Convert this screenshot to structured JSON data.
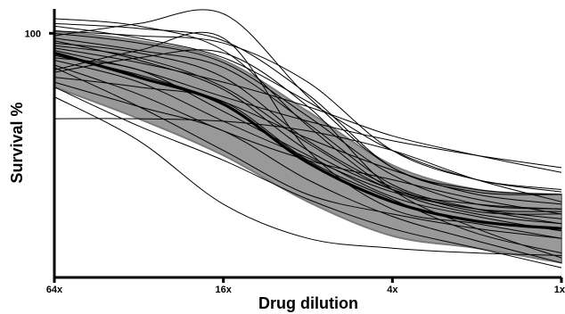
{
  "chart_data": {
    "type": "line",
    "title": "",
    "xlabel": "Drug dilution",
    "ylabel": "Survival %",
    "x_ticks": [
      "64x",
      "16x",
      "4x",
      "1x"
    ],
    "y_ticks": [
      "100"
    ],
    "xlim": [
      0,
      3
    ],
    "ylim": [
      0,
      110
    ],
    "grid": false,
    "legend": "none",
    "colors": {
      "individual": "#000000",
      "band_fill": "#999999",
      "band_edge": "#7a7a7a",
      "mean": "#000000"
    },
    "x": [
      0,
      0.5,
      1,
      1.5,
      2,
      2.5,
      3
    ],
    "band_upper": [
      101,
      97,
      89,
      68,
      46,
      36,
      34
    ],
    "band_lower": [
      78,
      65,
      50,
      31,
      17,
      12,
      6
    ],
    "mean_curve": {
      "values": [
        92,
        82,
        71,
        47,
        31,
        23,
        20
      ]
    },
    "series": [
      {
        "values": [
          106,
          103,
          93,
          62,
          36,
          26,
          22
        ]
      },
      {
        "values": [
          104,
          102,
          97,
          75,
          45,
          35,
          34
        ]
      },
      {
        "values": [
          103,
          98,
          90,
          72,
          52,
          40,
          35
        ]
      },
      {
        "values": [
          101,
          99,
          96,
          80,
          52,
          40,
          36
        ]
      },
      {
        "values": [
          100,
          96,
          88,
          66,
          42,
          30,
          28
        ]
      },
      {
        "values": [
          99,
          104,
          108,
          74,
          45,
          36,
          34
        ]
      },
      {
        "values": [
          98,
          93,
          86,
          63,
          38,
          28,
          22
        ]
      },
      {
        "values": [
          97,
          89,
          77,
          52,
          36,
          28,
          27
        ]
      },
      {
        "values": [
          96,
          92,
          82,
          56,
          37,
          27,
          26
        ]
      },
      {
        "values": [
          95,
          90,
          78,
          55,
          36,
          30,
          28
        ]
      },
      {
        "values": [
          94,
          88,
          80,
          70,
          58,
          50,
          43
        ]
      },
      {
        "values": [
          93,
          85,
          74,
          64,
          56,
          50,
          45
        ]
      },
      {
        "values": [
          91,
          83,
          72,
          57,
          44,
          34,
          30
        ]
      },
      {
        "values": [
          90,
          85,
          68,
          50,
          33,
          25,
          19
        ]
      },
      {
        "values": [
          89,
          80,
          64,
          49,
          35,
          28,
          24
        ]
      },
      {
        "values": [
          87,
          75,
          60,
          48,
          40,
          32,
          26
        ]
      },
      {
        "values": [
          86,
          70,
          52,
          34,
          26,
          20,
          16
        ]
      },
      {
        "values": [
          85,
          93,
          98,
          52,
          28,
          22,
          16
        ]
      },
      {
        "values": [
          84,
          90,
          92,
          70,
          36,
          20,
          8
        ]
      },
      {
        "values": [
          82,
          78,
          72,
          48,
          32,
          18,
          10
        ]
      },
      {
        "values": [
          80,
          70,
          60,
          40,
          25,
          15,
          6
        ]
      },
      {
        "values": [
          78,
          62,
          48,
          32,
          20,
          12,
          4
        ]
      },
      {
        "values": [
          74,
          56,
          30,
          16,
          12,
          10,
          9
        ]
      },
      {
        "values": [
          65,
          65,
          64,
          60,
          52,
          40,
          31
        ]
      }
    ]
  }
}
